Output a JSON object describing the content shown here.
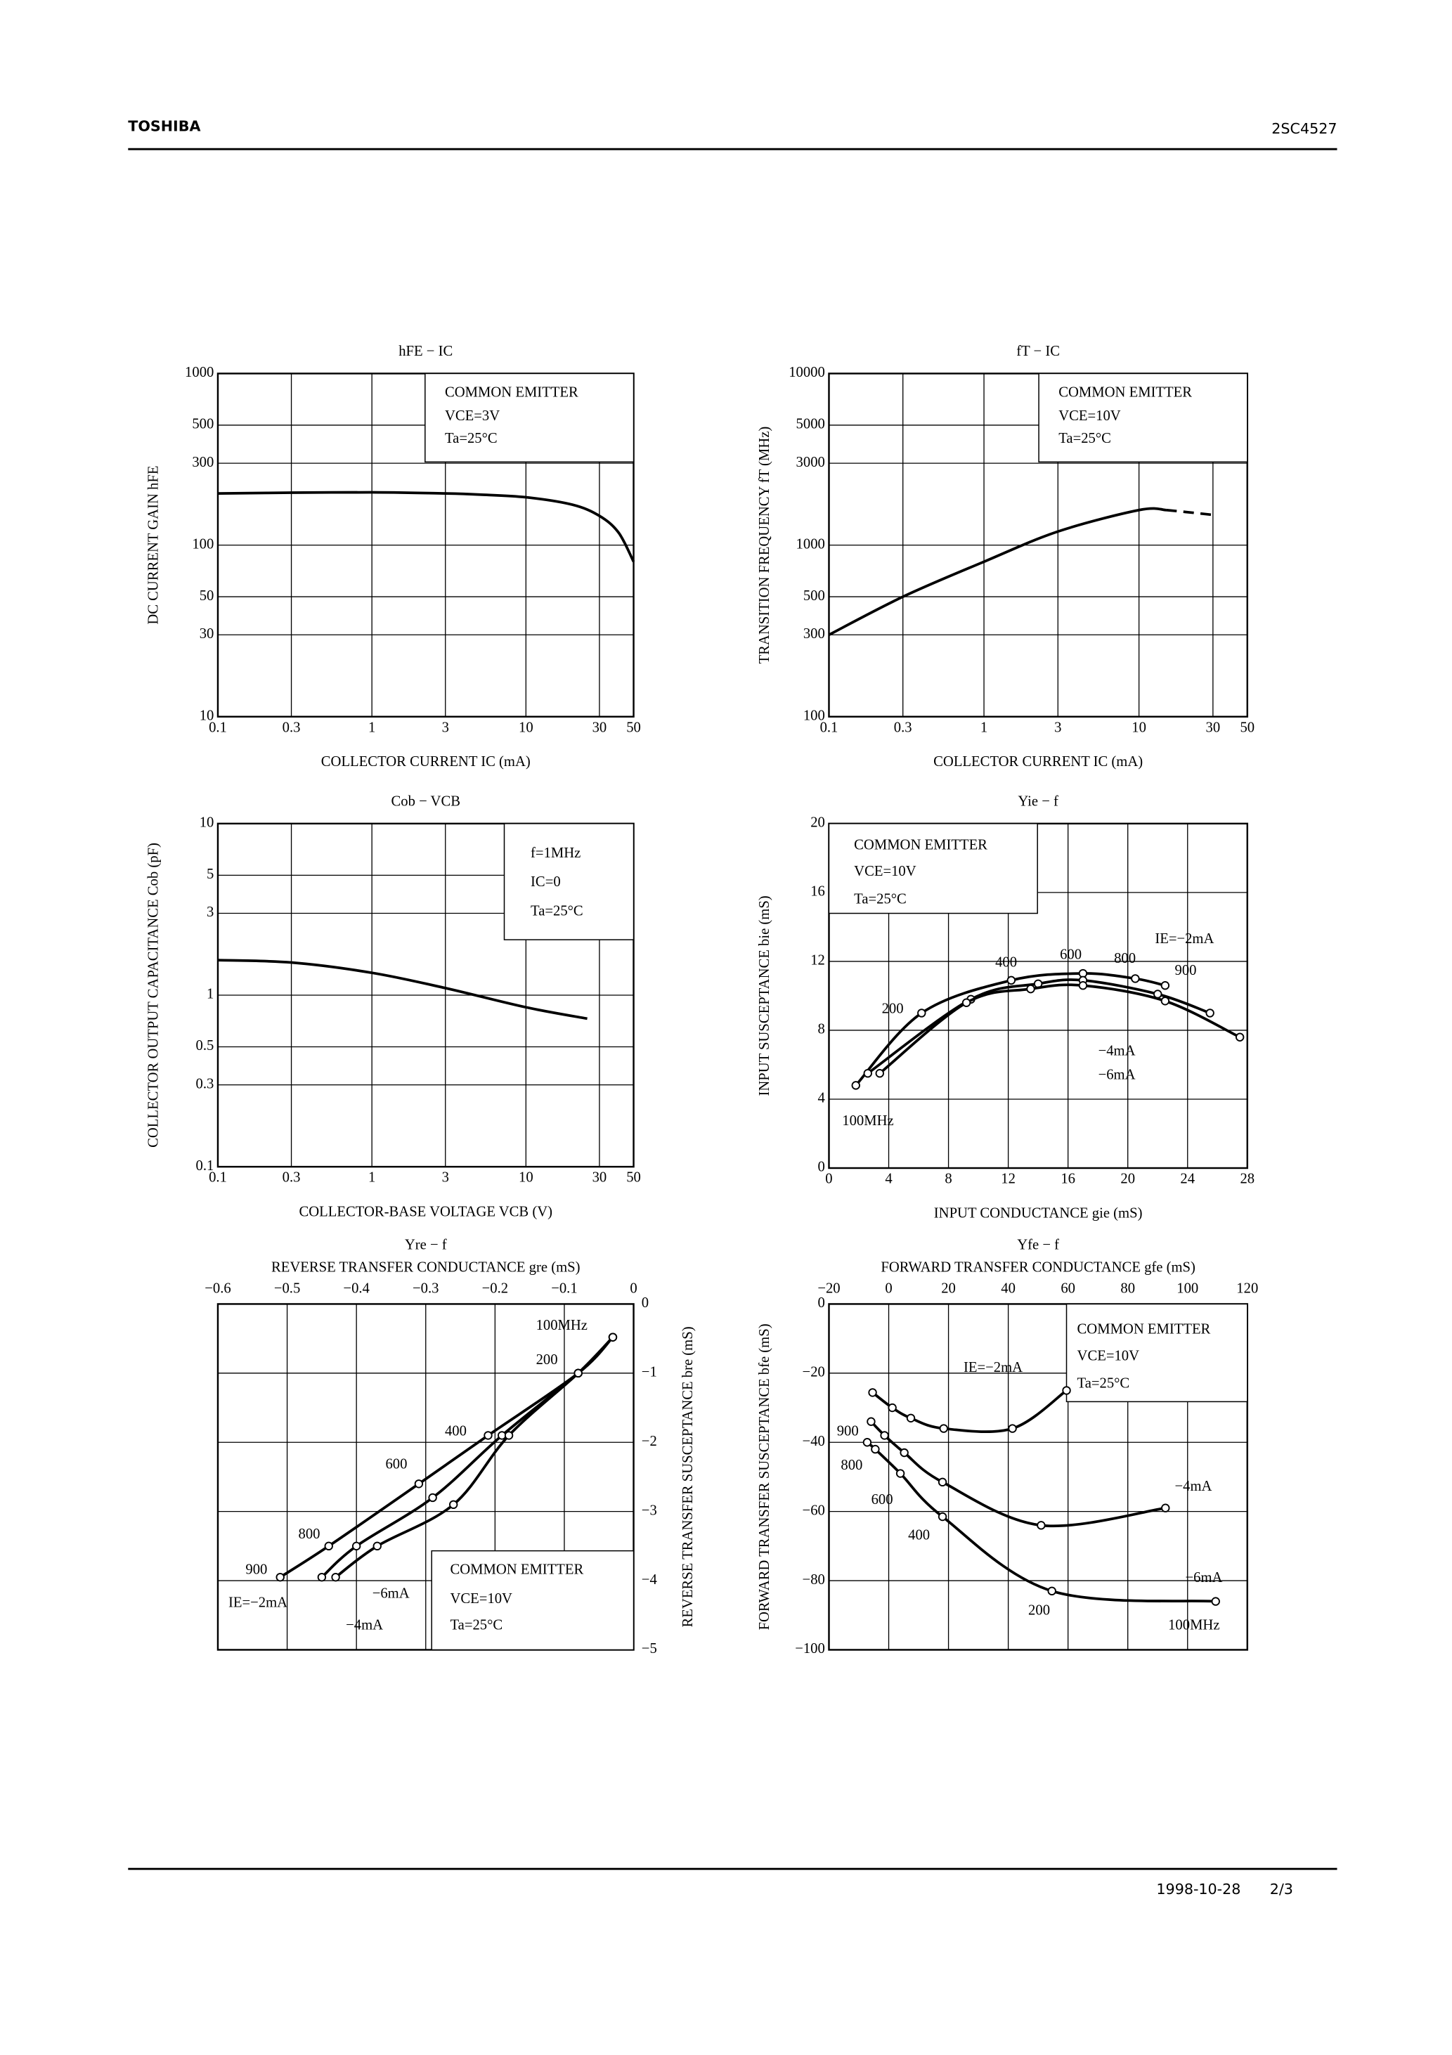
{
  "header": {
    "brand": "TOSHIBA",
    "part": "2SC4527"
  },
  "footer": {
    "date": "1998-10-28",
    "page": "2/3"
  },
  "chart_data": [
    {
      "type": "line",
      "title": "hFE − IC",
      "xlabel": "COLLECTOR CURRENT  IC  (mA)",
      "ylabel": "DC CURRENT GAIN  hFE",
      "xscale": "log",
      "yscale": "log",
      "xlim": [
        0.1,
        50
      ],
      "ylim": [
        10,
        1000
      ],
      "xticks": [
        0.1,
        0.3,
        1,
        3,
        10,
        30,
        50
      ],
      "yticks": [
        10,
        30,
        50,
        100,
        300,
        500,
        1000
      ],
      "grid": true,
      "annotations": [
        "COMMON EMITTER",
        "VCE=3V",
        "Ta=25°C"
      ],
      "series": [
        {
          "color": "#000000",
          "x": [
            0.1,
            0.3,
            1,
            3,
            5,
            10,
            20,
            30,
            40,
            50
          ],
          "values": [
            200,
            202,
            203,
            200,
            197,
            190,
            172,
            148,
            118,
            80
          ]
        }
      ]
    },
    {
      "type": "line",
      "title": "fT − IC",
      "xlabel": "COLLECTOR CURRENT  IC  (mA)",
      "ylabel": "TRANSITION FREQUENCY  fT  (MHz)",
      "xscale": "log",
      "yscale": "log",
      "xlim": [
        0.1,
        50
      ],
      "ylim": [
        100,
        10000
      ],
      "xticks": [
        0.1,
        0.3,
        1,
        3,
        10,
        30,
        50
      ],
      "yticks": [
        100,
        300,
        500,
        1000,
        3000,
        5000,
        10000
      ],
      "grid": true,
      "annotations": [
        "COMMON EMITTER",
        "VCE=10V",
        "Ta=25°C"
      ],
      "series": [
        {
          "color": "#000000",
          "x": [
            0.1,
            0.3,
            1,
            3,
            10,
            15
          ],
          "values": [
            300,
            500,
            800,
            1200,
            1600,
            1600
          ]
        },
        {
          "color": "#000000",
          "dashed": true,
          "x": [
            15,
            20,
            30
          ],
          "values": [
            1600,
            1560,
            1500
          ]
        }
      ]
    },
    {
      "type": "line",
      "title": "Cob − VCB",
      "xlabel": "COLLECTOR-BASE VOLTAGE  VCB  (V)",
      "ylabel": "COLLECTOR OUTPUT CAPACITANCE  Cob  (pF)",
      "xscale": "log",
      "yscale": "log",
      "xlim": [
        0.1,
        50
      ],
      "ylim": [
        0.1,
        10
      ],
      "xticks": [
        0.1,
        0.3,
        1,
        3,
        10,
        30,
        50
      ],
      "yticks": [
        0.1,
        0.3,
        0.5,
        1,
        3,
        5,
        10
      ],
      "grid": true,
      "annotations": [
        "f=1MHz",
        "IC=0",
        "Ta=25°C"
      ],
      "series": [
        {
          "color": "#000000",
          "x": [
            0.1,
            0.3,
            1,
            3,
            10,
            25
          ],
          "values": [
            1.6,
            1.55,
            1.35,
            1.1,
            0.85,
            0.73
          ]
        }
      ]
    },
    {
      "type": "line",
      "title": "Yie − f",
      "xlabel": "INPUT CONDUCTANCE  gie  (mS)",
      "ylabel": "INPUT SUSCEPTANCE  bie  (mS)",
      "xlim": [
        0,
        28
      ],
      "ylim": [
        0,
        20
      ],
      "xticks": [
        0,
        4,
        8,
        12,
        16,
        20,
        24,
        28
      ],
      "yticks": [
        0,
        4,
        8,
        12,
        16,
        20
      ],
      "grid": true,
      "markers": true,
      "annotations": [
        "COMMON EMITTER",
        "VCE=10V",
        "Ta=25°C",
        "100MHz",
        "200",
        "400",
        "600",
        "800",
        "900"
      ],
      "series": [
        {
          "name": "IE=−2mA",
          "color": "#000000",
          "x": [
            1.8,
            6.2,
            12.2,
            17,
            20.5,
            22.5
          ],
          "values": [
            4.8,
            9.0,
            10.9,
            11.3,
            11.0,
            10.6
          ]
        },
        {
          "name": "−4mA",
          "color": "#000000",
          "x": [
            2.6,
            9.5,
            14,
            17,
            22,
            25.5
          ],
          "values": [
            5.5,
            9.8,
            10.7,
            10.9,
            10.1,
            9.0
          ]
        },
        {
          "name": "−6mA",
          "color": "#000000",
          "x": [
            3.4,
            9.2,
            13.5,
            17,
            22.5,
            27.5
          ],
          "values": [
            5.5,
            9.6,
            10.4,
            10.6,
            9.7,
            7.6
          ]
        }
      ]
    },
    {
      "type": "line",
      "title": "Yre − f",
      "xlabel": "REVERSE TRANSFER CONDUCTANCE  gre  (mS)",
      "ylabel": "REVERSE TRANSFER SUSCEPTANCE  bre  (mS)",
      "x_axis": "top",
      "y_axis": "right",
      "xlim": [
        -0.6,
        0
      ],
      "ylim": [
        -5,
        0
      ],
      "xticks": [
        {
          "value": -0.6,
          "label": "−0.6"
        },
        {
          "value": -0.5,
          "label": "−0.5"
        },
        {
          "value": -0.4,
          "label": "−0.4"
        },
        {
          "value": -0.3,
          "label": "−0.3"
        },
        {
          "value": -0.2,
          "label": "−0.2"
        },
        {
          "value": -0.1,
          "label": "−0.1"
        },
        0
      ],
      "yticks": [
        0,
        {
          "value": -1,
          "label": "−1"
        },
        {
          "value": -2,
          "label": "−2"
        },
        {
          "value": -3,
          "label": "−3"
        },
        {
          "value": -4,
          "label": "−4"
        },
        {
          "value": -5,
          "label": "−5"
        }
      ],
      "grid": true,
      "markers": true,
      "annotations": [
        "COMMON EMITTER",
        "VCE=10V",
        "Ta=25°C",
        "100MHz",
        "200",
        "400",
        "600",
        "800",
        "900"
      ],
      "series": [
        {
          "name": "IE=−2mA",
          "color": "#000000",
          "x": [
            -0.03,
            -0.08,
            -0.21,
            -0.31,
            -0.44,
            -0.51
          ],
          "values": [
            -0.48,
            -1.0,
            -1.9,
            -2.6,
            -3.5,
            -3.95
          ]
        },
        {
          "name": "−4mA",
          "color": "#000000",
          "x": [
            -0.03,
            -0.08,
            -0.19,
            -0.29,
            -0.4,
            -0.45
          ],
          "values": [
            -0.48,
            -1.0,
            -1.9,
            -2.8,
            -3.5,
            -3.95
          ]
        },
        {
          "name": "−6mA",
          "color": "#000000",
          "x": [
            -0.03,
            -0.08,
            -0.18,
            -0.26,
            -0.37,
            -0.43
          ],
          "values": [
            -0.48,
            -1.0,
            -1.9,
            -2.9,
            -3.5,
            -3.95
          ]
        }
      ]
    },
    {
      "type": "line",
      "title": "Yfe − f",
      "xlabel": "FORWARD TRANSFER CONDUCTANCE  gfe  (mS)",
      "ylabel": "FORWARD TRANSFER SUSCEPTANCE  bfe  (mS)",
      "x_axis": "top",
      "xlim": [
        -20,
        120
      ],
      "ylim": [
        -100,
        0
      ],
      "xticks": [
        {
          "value": -20,
          "label": "−20"
        },
        0,
        20,
        40,
        60,
        80,
        100,
        120
      ],
      "yticks": [
        0,
        {
          "value": -20,
          "label": "−20"
        },
        {
          "value": -40,
          "label": "−40"
        },
        {
          "value": -60,
          "label": "−60"
        },
        {
          "value": -80,
          "label": "−80"
        },
        {
          "value": -100,
          "label": "−100"
        }
      ],
      "grid": true,
      "markers": true,
      "annotations": [
        "COMMON EMITTER",
        "VCE=10V",
        "Ta=25°C",
        "100MHz",
        "200",
        "400",
        "600",
        "800",
        "900"
      ],
      "series": [
        {
          "name": "IE=−2mA",
          "color": "#000000",
          "x": [
            -5.4,
            1.2,
            7.4,
            18.4,
            41.4,
            59.5
          ],
          "values": [
            -25.6,
            -30,
            -33,
            -36,
            -36,
            -25
          ]
        },
        {
          "name": "−4mA",
          "color": "#000000",
          "x": [
            -5.9,
            -1.4,
            5.2,
            18,
            51,
            92.6
          ],
          "values": [
            -34,
            -38,
            -43,
            -51.5,
            -64,
            -59
          ]
        },
        {
          "name": "−6mA",
          "color": "#000000",
          "x": [
            -7.2,
            -4.5,
            3.9,
            18,
            54.6,
            109.4
          ],
          "values": [
            -40,
            -42,
            -49,
            -61.5,
            -83,
            -86
          ]
        }
      ]
    }
  ]
}
